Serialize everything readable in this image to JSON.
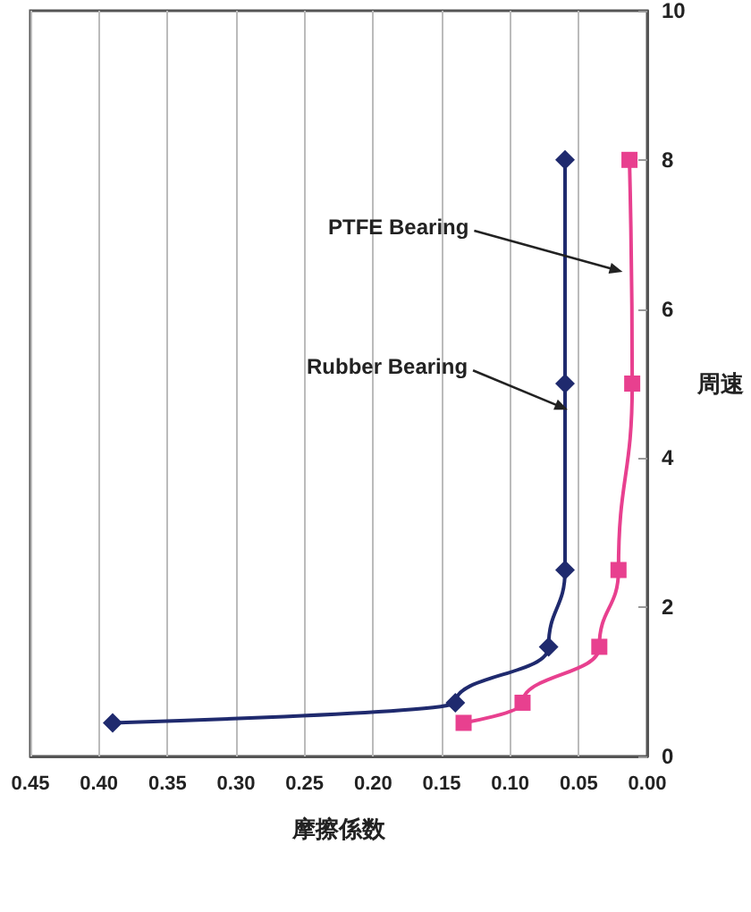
{
  "chart_data": {
    "type": "line",
    "xlabel": "摩擦係数",
    "ylabel": "周速",
    "series": [
      {
        "color": "#1f2a6e",
        "marker": "diamond",
        "x": [
          0.39,
          0.14,
          0.072,
          0.06,
          0.06,
          0.06
        ],
        "values": [
          0.45,
          0.72,
          1.47,
          2.5,
          5,
          8
        ]
      },
      {
        "color": "#e8408f",
        "marker": "square",
        "x": [
          0.134,
          0.091,
          0.035,
          0.021,
          0.011,
          0.013
        ],
        "values": [
          0.45,
          0.72,
          1.47,
          2.5,
          5,
          8
        ]
      }
    ],
    "xlim": [
      0.45,
      0
    ],
    "xticks": [
      {
        "value": 0.45,
        "label": "0.45"
      },
      {
        "value": 0.4,
        "label": "0.40"
      },
      {
        "value": 0.35,
        "label": "0.35"
      },
      {
        "value": 0.3,
        "label": "0.30"
      },
      {
        "value": 0.25,
        "label": "0.25"
      },
      {
        "value": 0.2,
        "label": "0.20"
      },
      {
        "value": 0.15,
        "label": "0.15"
      },
      {
        "value": 0.1,
        "label": "0.10"
      },
      {
        "value": 0.05,
        "label": "0.05"
      },
      {
        "value": 0,
        "label": "0.00"
      }
    ],
    "ylim": [
      0,
      10
    ],
    "yticks": [
      0,
      2,
      4,
      6,
      8,
      10
    ],
    "annotations": [
      {
        "text": "Rubber Bearing",
        "x": 0.058,
        "y": 4.65
      },
      {
        "text": "PTFE Bearing",
        "x": 0.018,
        "y": 6.5
      }
    ],
    "grid": "x",
    "line_style": "solid"
  }
}
